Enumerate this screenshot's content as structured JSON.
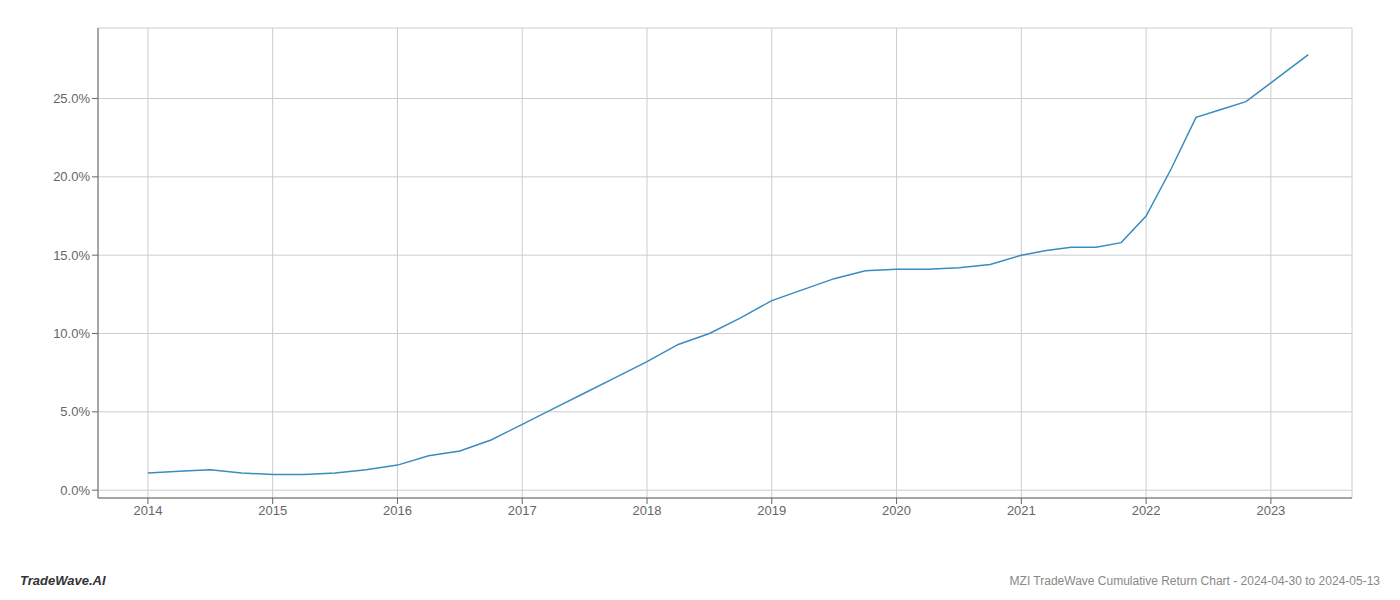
{
  "chart_data": {
    "type": "line",
    "title": "MZI TradeWave Cumulative Return Chart - 2024-04-30 to 2024-05-13",
    "annotations": [
      "TradeWave.AI"
    ],
    "x": [
      2014.0,
      2014.25,
      2014.5,
      2014.75,
      2015.0,
      2015.25,
      2015.5,
      2015.75,
      2016.0,
      2016.25,
      2016.5,
      2016.75,
      2017.0,
      2017.25,
      2017.5,
      2017.75,
      2018.0,
      2018.25,
      2018.5,
      2018.75,
      2019.0,
      2019.25,
      2019.5,
      2019.75,
      2020.0,
      2020.25,
      2020.5,
      2020.75,
      2021.0,
      2021.2,
      2021.4,
      2021.6,
      2021.8,
      2022.0,
      2022.2,
      2022.4,
      2022.6,
      2022.8,
      2023.0,
      2023.3
    ],
    "values": [
      0.011,
      0.012,
      0.013,
      0.011,
      0.01,
      0.01,
      0.011,
      0.013,
      0.016,
      0.022,
      0.025,
      0.032,
      0.042,
      0.052,
      0.062,
      0.072,
      0.082,
      0.093,
      0.1,
      0.11,
      0.121,
      0.128,
      0.135,
      0.14,
      0.141,
      0.141,
      0.142,
      0.144,
      0.15,
      0.153,
      0.155,
      0.155,
      0.158,
      0.175,
      0.205,
      0.238,
      0.243,
      0.248,
      0.26,
      0.278
    ],
    "color": "#3a8bbf",
    "xlim": [
      2013.6,
      2023.65
    ],
    "ylim": [
      -0.005,
      0.295
    ],
    "xticks": [
      2014,
      2015,
      2016,
      2017,
      2018,
      2019,
      2020,
      2021,
      2022,
      2023
    ],
    "yticks": [
      {
        "value": 0.0,
        "label": "0.0%"
      },
      {
        "value": 0.05,
        "label": "5.0%"
      },
      {
        "value": 0.1,
        "label": "10.0%"
      },
      {
        "value": 0.15,
        "label": "15.0%"
      },
      {
        "value": 0.2,
        "label": "20.0%"
      },
      {
        "value": 0.25,
        "label": "25.0%"
      }
    ],
    "grid": true
  }
}
